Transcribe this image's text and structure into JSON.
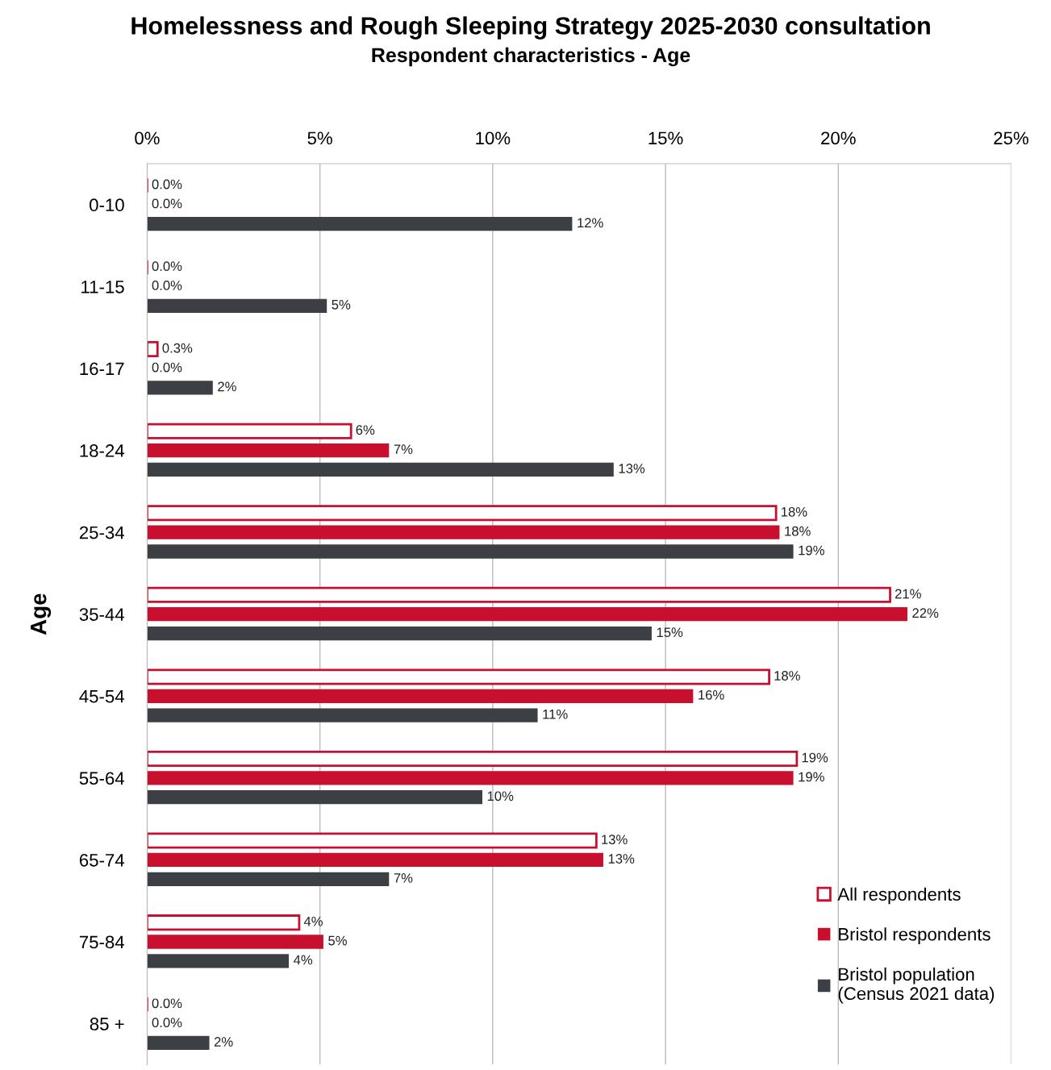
{
  "chart_data": {
    "type": "bar",
    "orientation": "horizontal",
    "title": "Homelessness and Rough Sleeping Strategy 2025-2030 consultation",
    "subtitle": "Respondent characteristics - Age",
    "ylabel": "Age",
    "categories": [
      "0-10",
      "11-15",
      "16-17",
      "18-24",
      "25-34",
      "35-44",
      "45-54",
      "55-64",
      "65-74",
      "75-84",
      "85 +"
    ],
    "series": [
      {
        "name": "All respondents",
        "color": "#c8102e",
        "values": [
          0,
          0,
          0.3,
          5.9,
          18.2,
          21.5,
          18,
          18.8,
          13,
          4.4,
          0
        ],
        "value_labels": [
          "0.0%",
          "0.0%",
          "0.3%",
          "6%",
          "18%",
          "21%",
          "18%",
          "19%",
          "13%",
          "4%",
          "0.0%"
        ]
      },
      {
        "name": "Bristol respondents",
        "color": "#c8102e",
        "values": [
          0,
          0,
          0,
          7,
          18.3,
          22,
          15.8,
          18.7,
          13.2,
          5.1,
          0
        ],
        "value_labels": [
          "0.0%",
          "0.0%",
          "0.0%",
          "7%",
          "18%",
          "22%",
          "16%",
          "19%",
          "13%",
          "5%",
          "0.0%"
        ]
      },
      {
        "name": "Bristol population\n(Census 2021 data)",
        "color": "#3c3f44",
        "values": [
          12.3,
          5.2,
          1.9,
          13.5,
          18.7,
          14.6,
          11.3,
          9.7,
          7,
          4.1,
          1.8
        ],
        "value_labels": [
          "12%",
          "5%",
          "2%",
          "13%",
          "19%",
          "15%",
          "11%",
          "10%",
          "7%",
          "4%",
          "2%"
        ]
      }
    ],
    "xlim": [
      0,
      25
    ],
    "xticks": [
      {
        "value": 0,
        "label": "0%"
      },
      {
        "value": 5,
        "label": "5%"
      },
      {
        "value": 10,
        "label": "10%"
      },
      {
        "value": 15,
        "label": "15%"
      },
      {
        "value": 20,
        "label": "20%"
      },
      {
        "value": 25,
        "label": "25%"
      }
    ],
    "grid": "x",
    "legend": "bottom right"
  }
}
